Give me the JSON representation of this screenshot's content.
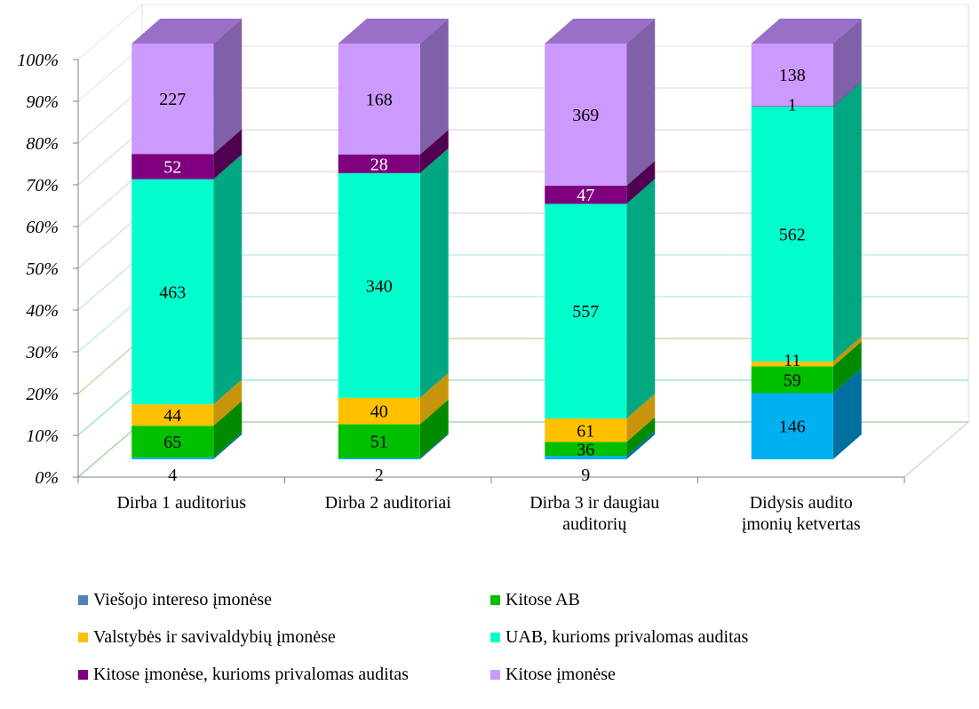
{
  "chart_data": {
    "type": "bar",
    "stacked": "percent",
    "three_d": true,
    "title": "",
    "xlabel": "",
    "ylabel": "",
    "ylim": [
      0,
      100
    ],
    "y_ticks": [
      "0%",
      "10%",
      "20%",
      "30%",
      "40%",
      "50%",
      "60%",
      "70%",
      "80%",
      "90%",
      "100%"
    ],
    "categories": [
      "Dirba 1 auditorius",
      "Dirba 2 auditoriai",
      "Dirba 3 ir daugiau auditorių",
      "Didysis audito įmonių ketvertas"
    ],
    "category_lines": [
      [
        "Dirba 1 auditorius"
      ],
      [
        "Dirba 2 auditoriai"
      ],
      [
        "Dirba 3 ir daugiau",
        "auditorių"
      ],
      [
        "Didysis audito",
        "įmonių ketvertas"
      ]
    ],
    "series": [
      {
        "name": "Viešojo intereso įmonėse",
        "values": [
          4,
          2,
          9,
          146
        ],
        "color": "#4f81bd",
        "color_front": "#00b0f0",
        "color_side": "#0070a0",
        "color_top": "#2c9fd0",
        "label_color": "#000000"
      },
      {
        "name": "Kitose AB",
        "values": [
          65,
          51,
          36,
          59
        ],
        "color": "#00c000",
        "color_front": "#00c000",
        "color_side": "#008a00",
        "color_top": "#00a000",
        "label_color": "#000000"
      },
      {
        "name": "Valstybės ir savivaldybių įmonėse",
        "values": [
          44,
          40,
          61,
          11
        ],
        "color": "#ffc000",
        "color_front": "#ffc000",
        "color_side": "#c8950a",
        "color_top": "#dba600",
        "label_color": "#000000"
      },
      {
        "name": "UAB, kurioms privalomas auditas",
        "values": [
          463,
          340,
          557,
          562
        ],
        "color": "#00ffcc",
        "color_front": "#00ffcc",
        "color_side": "#00a882",
        "color_top": "#00d6ab",
        "label_color": "#000000"
      },
      {
        "name": "Kitose įmonėse, kurioms privalomas auditas",
        "values": [
          52,
          28,
          47,
          1
        ],
        "color": "#7f007f",
        "color_front": "#7f007f",
        "color_side": "#500050",
        "color_top": "#660066",
        "label_color": "#ffffff"
      },
      {
        "name": "Kitose įmonėse",
        "values": [
          227,
          168,
          369,
          138
        ],
        "color": "#cc99ff",
        "color_front": "#cc99ff",
        "color_side": "#8060a8",
        "color_top": "#9a6fc8",
        "label_color": "#000000"
      }
    ],
    "legend_position": "bottom",
    "grid": true
  }
}
